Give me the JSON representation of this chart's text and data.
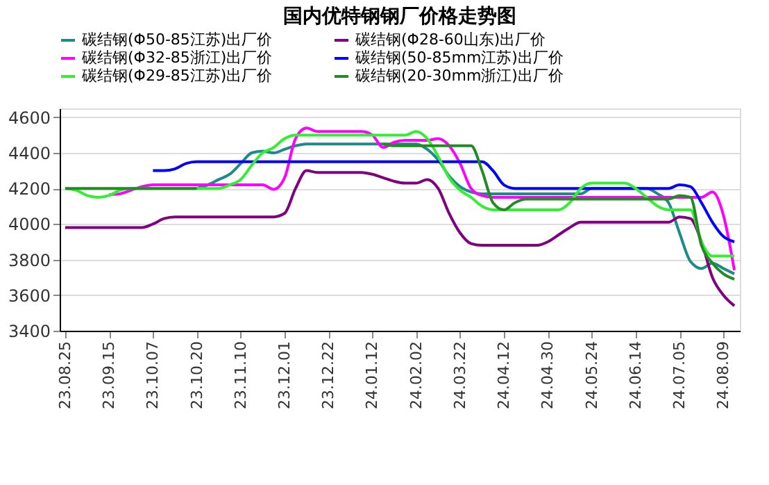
{
  "chart_data": {
    "type": "line",
    "title": "国内优特钢钢厂价格走势图",
    "categories": [
      "23.08.25",
      null,
      null,
      null,
      "23.09.15",
      null,
      null,
      null,
      "23.10.07",
      null,
      null,
      null,
      "23.10.20",
      null,
      null,
      null,
      "23.11.10",
      null,
      null,
      null,
      "23.12.01",
      null,
      null,
      null,
      "23.12.22",
      null,
      null,
      null,
      "24.01.12",
      null,
      null,
      null,
      "24.02.02",
      null,
      null,
      null,
      "24.03.22",
      null,
      null,
      null,
      "24.04.12",
      null,
      null,
      null,
      "24.04.30",
      null,
      null,
      null,
      "24.05.24",
      null,
      null,
      null,
      "24.06.14",
      null,
      null,
      null,
      "24.07.05",
      null,
      null,
      null,
      "24.08.09",
      null
    ],
    "series": [
      {
        "name": "碳结钢(Φ50-85江苏)出厂价",
        "color": "#1f8a8a",
        "values": [
          null,
          null,
          null,
          null,
          null,
          null,
          null,
          null,
          null,
          null,
          null,
          null,
          4200,
          4220,
          4250,
          4280,
          4340,
          4400,
          4410,
          4400,
          4420,
          4440,
          4450,
          4450,
          4450,
          4450,
          4450,
          4450,
          4450,
          4450,
          4450,
          4450,
          4450,
          4420,
          4360,
          4270,
          4210,
          4180,
          4170,
          4170,
          4170,
          4170,
          4170,
          4170,
          4170,
          4170,
          4170,
          4170,
          4200,
          4200,
          4200,
          4200,
          4200,
          4200,
          4170,
          4120,
          3950,
          3790,
          3750,
          3780,
          3750,
          3720
        ]
      },
      {
        "name": "碳结钢(Φ28-60山东)出厂价",
        "color": "#800080",
        "values": [
          3980,
          3980,
          3980,
          3980,
          3980,
          3980,
          3980,
          3980,
          4000,
          4030,
          4040,
          4040,
          4040,
          4040,
          4040,
          4040,
          4040,
          4040,
          4040,
          4040,
          4060,
          4200,
          4300,
          4290,
          4290,
          4290,
          4290,
          4290,
          4280,
          4260,
          4240,
          4230,
          4230,
          4250,
          4200,
          4060,
          3950,
          3890,
          3880,
          3880,
          3880,
          3880,
          3880,
          3880,
          3900,
          3940,
          3980,
          4010,
          4010,
          4010,
          4010,
          4010,
          4010,
          4010,
          4010,
          4010,
          4040,
          4030,
          3900,
          3700,
          3600,
          3540
        ]
      },
      {
        "name": "碳结钢(Φ32-85浙江)出厂价",
        "color": "#ff00ff",
        "values": [
          null,
          null,
          null,
          null,
          4165,
          4170,
          4190,
          4210,
          4220,
          4220,
          4220,
          4220,
          4220,
          4220,
          4220,
          4220,
          4220,
          4220,
          4220,
          4195,
          4260,
          4480,
          4540,
          4520,
          4520,
          4520,
          4520,
          4520,
          4500,
          4430,
          4460,
          4470,
          4470,
          4470,
          4480,
          4440,
          4340,
          4200,
          4160,
          4150,
          4150,
          4150,
          4150,
          4150,
          4150,
          4150,
          4150,
          4150,
          4150,
          4150,
          4150,
          4150,
          4150,
          4150,
          4150,
          4150,
          4150,
          4150,
          4150,
          4180,
          4050,
          3740
        ]
      },
      {
        "name": "碳结钢(50-85mm江苏)出厂价",
        "color": "#0000ff",
        "values": [
          null,
          null,
          null,
          null,
          null,
          null,
          null,
          null,
          4300,
          4300,
          4310,
          4340,
          4350,
          4350,
          4350,
          4350,
          4350,
          4350,
          4350,
          4350,
          4350,
          4350,
          4350,
          4350,
          4350,
          4350,
          4350,
          4350,
          4350,
          4350,
          4350,
          4350,
          4350,
          4350,
          4350,
          4350,
          4350,
          4350,
          4350,
          4300,
          4220,
          4200,
          4200,
          4200,
          4200,
          4200,
          4200,
          4200,
          4200,
          4200,
          4200,
          4200,
          4200,
          4200,
          4200,
          4200,
          4220,
          4210,
          4120,
          4010,
          3930,
          3900
        ]
      },
      {
        "name": "碳结钢(Φ29-85江苏)出厂价",
        "color": "#33ee33",
        "values": [
          4200,
          4190,
          4160,
          4150,
          4160,
          4190,
          4200,
          4200,
          4200,
          4200,
          4200,
          4200,
          4200,
          4200,
          4200,
          4220,
          4250,
          4330,
          4400,
          4430,
          4480,
          4500,
          4500,
          4500,
          4500,
          4500,
          4500,
          4500,
          4500,
          4500,
          4500,
          4500,
          4520,
          4480,
          4380,
          4260,
          4190,
          4150,
          4100,
          4080,
          4080,
          4080,
          4080,
          4080,
          4080,
          4080,
          4120,
          4200,
          4230,
          4230,
          4230,
          4230,
          4200,
          4150,
          4100,
          4080,
          4080,
          4080,
          3900,
          3820,
          3820,
          3820
        ]
      },
      {
        "name": "碳结钢(20-30mm浙江)出厂价",
        "color": "#228b22",
        "values": [
          4200,
          4200,
          4200,
          4200,
          4200,
          4200,
          4200,
          4200,
          4200,
          4200,
          4200,
          4200,
          4200,
          null,
          null,
          null,
          null,
          null,
          null,
          null,
          null,
          null,
          null,
          null,
          null,
          null,
          null,
          null,
          null,
          4450,
          4440,
          4440,
          4440,
          4440,
          4440,
          4440,
          4440,
          4440,
          4300,
          4120,
          4080,
          4120,
          4140,
          4140,
          4140,
          4140,
          4140,
          4140,
          4140,
          4140,
          4140,
          4140,
          4140,
          4140,
          4140,
          4140,
          4160,
          4150,
          3880,
          3780,
          3720,
          3690
        ]
      }
    ],
    "ylim": [
      3400,
      4650
    ],
    "yticks": [
      3400,
      3600,
      3800,
      4000,
      4200,
      4400,
      4600
    ],
    "grid": "y",
    "legend": "top"
  }
}
